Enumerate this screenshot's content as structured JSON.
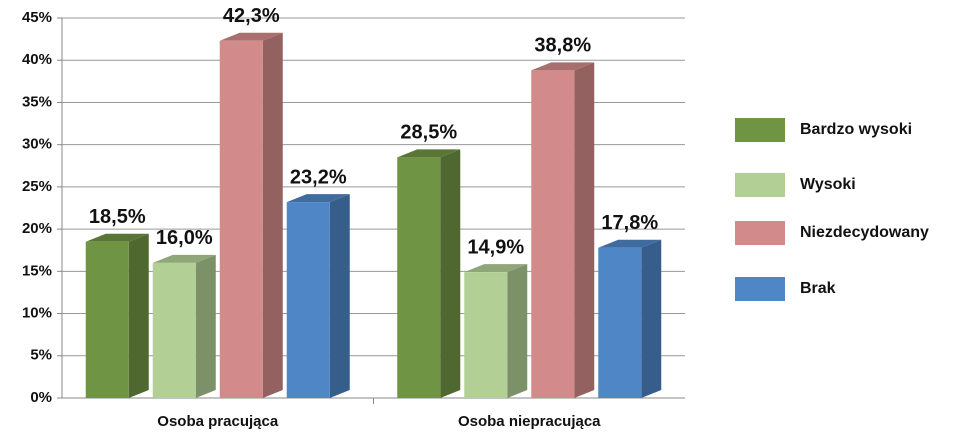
{
  "chart_data": {
    "type": "bar3d",
    "categories": [
      "Osoba pracująca",
      "Osoba niepracująca"
    ],
    "series": [
      {
        "name": "Bardzo wysoki",
        "color": "#6f9444",
        "values": [
          18.5,
          28.5
        ],
        "value_labels": [
          "18,5%",
          "28,5%"
        ]
      },
      {
        "name": "Wysoki",
        "color": "#b2cf96",
        "values": [
          16.0,
          14.9
        ],
        "value_labels": [
          "16,0%",
          "14,9%"
        ]
      },
      {
        "name": "Niezdecydowany",
        "color": "#d38a8a",
        "values": [
          42.3,
          38.8
        ],
        "value_labels": [
          "42,3%",
          "38,8%"
        ]
      },
      {
        "name": "Brak",
        "color": "#4f86c6",
        "values": [
          23.2,
          17.8
        ],
        "value_labels": [
          "23,2%",
          "17,8%"
        ]
      }
    ],
    "ylim": [
      0,
      45
    ],
    "yticks": [
      {
        "value": 0,
        "label": "0%"
      },
      {
        "value": 5,
        "label": "5%"
      },
      {
        "value": 10,
        "label": "10%"
      },
      {
        "value": 15,
        "label": "15%"
      },
      {
        "value": 20,
        "label": "20%"
      },
      {
        "value": 25,
        "label": "25%"
      },
      {
        "value": 30,
        "label": "30%"
      },
      {
        "value": 35,
        "label": "35%"
      },
      {
        "value": 40,
        "label": "40%"
      },
      {
        "value": 45,
        "label": "45%"
      }
    ],
    "grid": true,
    "legend": "right"
  }
}
